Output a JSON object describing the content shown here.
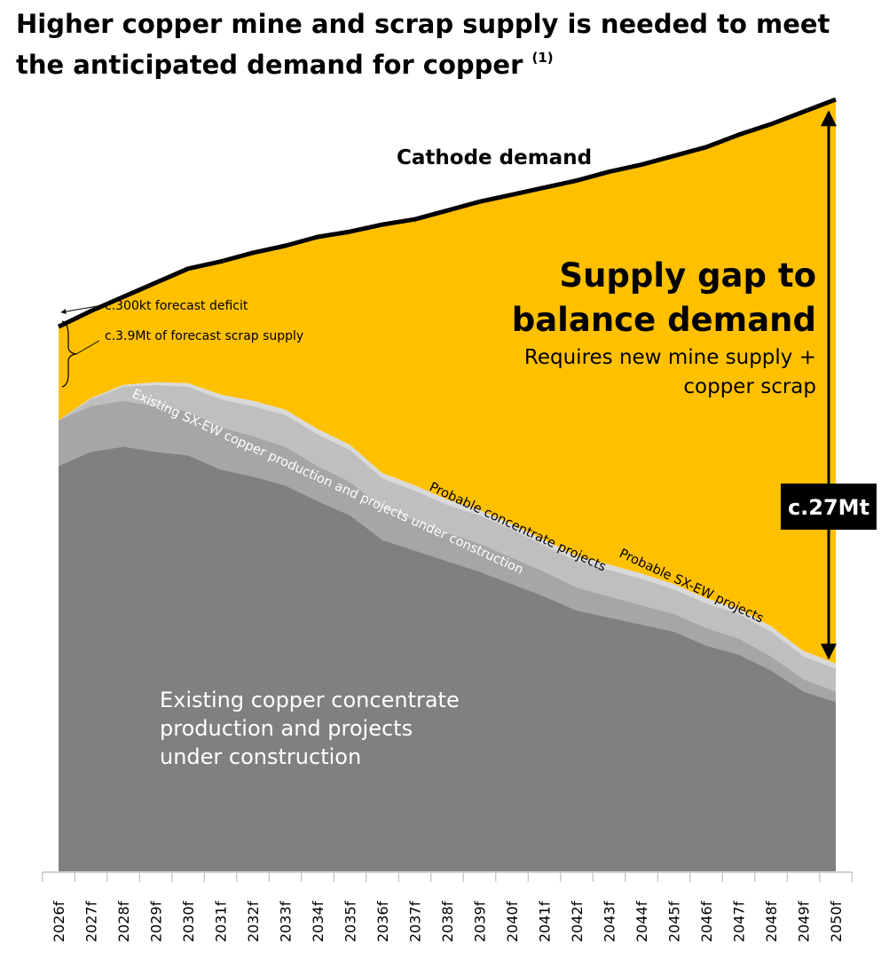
{
  "title": {
    "line1": "Higher copper mine and scrap supply is needed to meet",
    "line2": "the anticipated demand for copper",
    "footnote": "(1)"
  },
  "colors": {
    "gap": "#FFC000",
    "concentrate": "#808080",
    "sxew": "#A6A6A6",
    "probable_concentrate": "#BFBFBF",
    "probable_sxew": "#D9D9D9",
    "demand_line": "#000000",
    "badge": "#000000"
  },
  "chart_data": {
    "type": "area",
    "stacked": true,
    "categories": [
      "2026f",
      "2027f",
      "2028f",
      "2029f",
      "2030f",
      "2031f",
      "2032f",
      "2033f",
      "2034f",
      "2035f",
      "2036f",
      "2037f",
      "2038f",
      "2039f",
      "2040f",
      "2041f",
      "2042f",
      "2043f",
      "2044f",
      "2045f",
      "2046f",
      "2047f",
      "2048f",
      "2049f",
      "2050f"
    ],
    "unit": "Mt",
    "ylim": [
      0,
      42.5
    ],
    "grid": false,
    "legend": "none",
    "series": [
      {
        "name": "Existing copper concentrate production and projects under construction",
        "values": [
          23.0,
          23.8,
          24.1,
          23.8,
          23.6,
          22.8,
          22.4,
          21.9,
          21.0,
          20.2,
          18.8,
          18.2,
          17.6,
          17.0,
          16.3,
          15.6,
          14.8,
          14.4,
          14.0,
          13.6,
          12.8,
          12.3,
          11.4,
          10.2,
          9.6
        ]
      },
      {
        "name": "Existing SX-EW copper production and projects under construction",
        "values": [
          2.6,
          2.6,
          2.6,
          2.6,
          2.5,
          2.4,
          2.3,
          2.2,
          2.0,
          1.9,
          1.8,
          1.7,
          1.6,
          1.6,
          1.5,
          1.4,
          1.3,
          1.2,
          1.1,
          1.0,
          1.0,
          0.9,
          0.8,
          0.7,
          0.6
        ]
      },
      {
        "name": "Probable concentrate projects",
        "values": [
          0.0,
          0.4,
          0.8,
          1.2,
          1.4,
          1.6,
          1.7,
          1.8,
          1.8,
          1.8,
          1.7,
          1.7,
          1.6,
          1.6,
          1.6,
          1.5,
          1.5,
          1.5,
          1.5,
          1.4,
          1.4,
          1.4,
          1.4,
          1.3,
          1.3
        ]
      },
      {
        "name": "Probable SX-EW projects",
        "values": [
          0.0,
          0.05,
          0.1,
          0.15,
          0.2,
          0.25,
          0.3,
          0.3,
          0.3,
          0.3,
          0.3,
          0.3,
          0.3,
          0.3,
          0.3,
          0.3,
          0.3,
          0.3,
          0.3,
          0.3,
          0.3,
          0.3,
          0.3,
          0.3,
          0.3
        ]
      },
      {
        "name": "Cathode demand",
        "type": "line",
        "values": [
          30.9,
          31.8,
          32.6,
          33.4,
          34.2,
          34.6,
          35.1,
          35.5,
          36.0,
          36.3,
          36.7,
          37.0,
          37.5,
          38.0,
          38.4,
          38.8,
          39.2,
          39.7,
          40.1,
          40.6,
          41.1,
          41.8,
          42.4,
          43.1,
          43.8
        ]
      }
    ],
    "annotations": {
      "deficit": "c.300kt forecast deficit",
      "scrap": "c.3.9Mt of forecast scrap supply",
      "gap_title_line1": "Supply gap to",
      "gap_title_line2": "balance demand",
      "gap_sub_line1": "Requires new mine supply +",
      "gap_sub_line2": "copper scrap",
      "gap_value": "c.27Mt",
      "base_label_line1": "Existing copper concentrate",
      "base_label_line2": "production and projects",
      "base_label_line3": "under construction",
      "sxew_label": "Existing SX-EW copper production and projects under construction",
      "probable_conc_label": "Probable concentrate projects",
      "probable_sxew_label": "Probable SX-EW projects",
      "demand_label": "Cathode demand"
    }
  }
}
